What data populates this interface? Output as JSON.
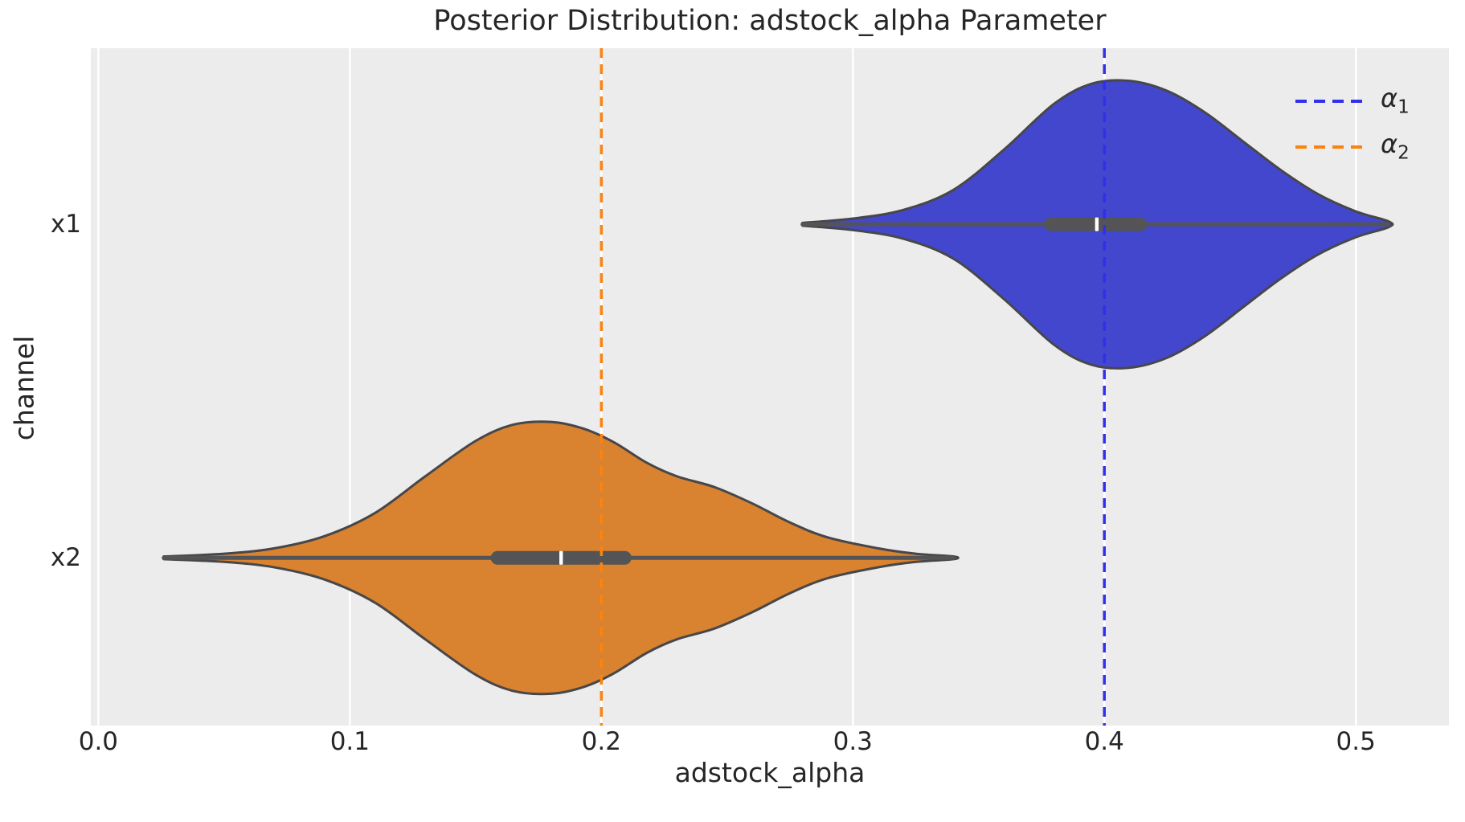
{
  "chart_data": {
    "type": "violin",
    "orientation": "horizontal",
    "title": "Posterior Distribution: adstock_alpha Parameter",
    "xlabel": "adstock_alpha",
    "ylabel": "channel",
    "categories": [
      "x1",
      "x2"
    ],
    "xticks": [
      0.0,
      0.1,
      0.2,
      0.3,
      0.4,
      0.5
    ],
    "xtick_labels": [
      "0.0",
      "0.1",
      "0.2",
      "0.3",
      "0.4",
      "0.5"
    ],
    "xlim": [
      -0.003,
      0.537
    ],
    "ylim_positions": [
      -0.528,
      1.503
    ],
    "grid": {
      "vertical": true,
      "horizontal": false,
      "color": "#ffffff"
    },
    "plot_bg": "#ececec",
    "text_color": "#262626",
    "inner": {
      "box_color": "#545456",
      "median_color": "#ffffff"
    },
    "violins": [
      {
        "category": "x1",
        "position": 0,
        "fill": "#4347ce",
        "outline": "#47474a",
        "width": 0.86,
        "stats": {
          "median": 0.397,
          "q1": 0.376,
          "q3": 0.417,
          "whisker_min": 0.28,
          "whisker_max": 0.513
        },
        "kde": [
          [
            0.28,
            0.01
          ],
          [
            0.3,
            0.04
          ],
          [
            0.32,
            0.1
          ],
          [
            0.34,
            0.24
          ],
          [
            0.36,
            0.52
          ],
          [
            0.38,
            0.84
          ],
          [
            0.395,
            0.98
          ],
          [
            0.41,
            1.0
          ],
          [
            0.425,
            0.93
          ],
          [
            0.44,
            0.78
          ],
          [
            0.455,
            0.58
          ],
          [
            0.47,
            0.38
          ],
          [
            0.485,
            0.21
          ],
          [
            0.5,
            0.09
          ],
          [
            0.513,
            0.02
          ]
        ]
      },
      {
        "category": "x2",
        "position": 1,
        "fill": "#d9822f",
        "outline": "#47474a",
        "width": 0.815,
        "stats": {
          "median": 0.184,
          "q1": 0.156,
          "q3": 0.212,
          "whisker_min": 0.026,
          "whisker_max": 0.34
        },
        "kde": [
          [
            0.026,
            0.01
          ],
          [
            0.05,
            0.03
          ],
          [
            0.07,
            0.07
          ],
          [
            0.09,
            0.16
          ],
          [
            0.11,
            0.33
          ],
          [
            0.13,
            0.6
          ],
          [
            0.15,
            0.86
          ],
          [
            0.165,
            0.98
          ],
          [
            0.18,
            1.0
          ],
          [
            0.193,
            0.95
          ],
          [
            0.205,
            0.85
          ],
          [
            0.218,
            0.7
          ],
          [
            0.23,
            0.6
          ],
          [
            0.245,
            0.52
          ],
          [
            0.26,
            0.4
          ],
          [
            0.275,
            0.26
          ],
          [
            0.29,
            0.15
          ],
          [
            0.31,
            0.07
          ],
          [
            0.325,
            0.03
          ],
          [
            0.34,
            0.01
          ]
        ]
      }
    ],
    "ref_lines": [
      {
        "label": "α",
        "label_sub": "1",
        "value": 0.4,
        "color": "#3030ec",
        "style": "dashed"
      },
      {
        "label": "α",
        "label_sub": "2",
        "value": 0.2,
        "color": "#fb830f",
        "style": "dashed"
      }
    ],
    "legend": {
      "position": "upper-right",
      "entries": [
        {
          "symbol": "α",
          "sub": "1",
          "color": "#3030ec",
          "line_style": "dashed"
        },
        {
          "symbol": "α",
          "sub": "2",
          "color": "#fb830f",
          "line_style": "dashed"
        }
      ]
    }
  }
}
